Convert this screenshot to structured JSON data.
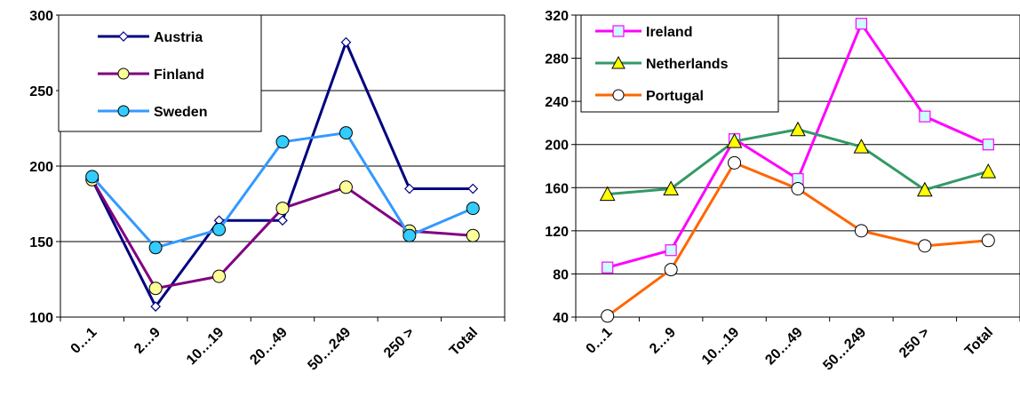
{
  "chart_data": [
    {
      "type": "line",
      "categories": [
        "0…1",
        "2…9",
        "10…19",
        "20…49",
        "50…249",
        "250 >",
        "Total"
      ],
      "ylim": [
        100,
        300
      ],
      "yticks": [
        100,
        150,
        200,
        250,
        300
      ],
      "grid": true,
      "legend": "top-left",
      "series": [
        {
          "name": "Austria",
          "color": "#000080",
          "marker": "diamond",
          "marker_fill": "#ffffff",
          "values": [
            191,
            107,
            164,
            164,
            282,
            185,
            185
          ]
        },
        {
          "name": "Finland",
          "color": "#800080",
          "marker": "circle",
          "marker_fill": "#ffff99",
          "values": [
            191,
            119,
            127,
            172,
            186,
            157,
            154
          ]
        },
        {
          "name": "Sweden",
          "color": "#3399ff",
          "marker": "circle",
          "marker_fill": "#33ccff",
          "values": [
            193,
            146,
            158,
            216,
            222,
            154,
            172
          ]
        }
      ]
    },
    {
      "type": "line",
      "categories": [
        "0…1",
        "2…9",
        "10…19",
        "20…49",
        "50…249",
        "250 >",
        "Total"
      ],
      "ylim": [
        40,
        320
      ],
      "yticks": [
        40,
        80,
        120,
        160,
        200,
        240,
        280,
        320
      ],
      "grid": true,
      "legend": "top-left",
      "series": [
        {
          "name": "Ireland",
          "color": "#ff00ff",
          "marker": "square",
          "marker_fill": "#ccffff",
          "values": [
            86,
            102,
            205,
            168,
            312,
            226,
            200
          ]
        },
        {
          "name": "Netherlands",
          "color": "#339966",
          "marker": "triangle",
          "marker_fill": "#ffff00",
          "values": [
            154,
            159,
            203,
            214,
            198,
            158,
            175
          ]
        },
        {
          "name": "Portugal",
          "color": "#ff6600",
          "marker": "circle",
          "marker_fill": "#ffffff",
          "values": [
            41,
            84,
            183,
            159,
            120,
            106,
            111
          ]
        }
      ]
    }
  ]
}
